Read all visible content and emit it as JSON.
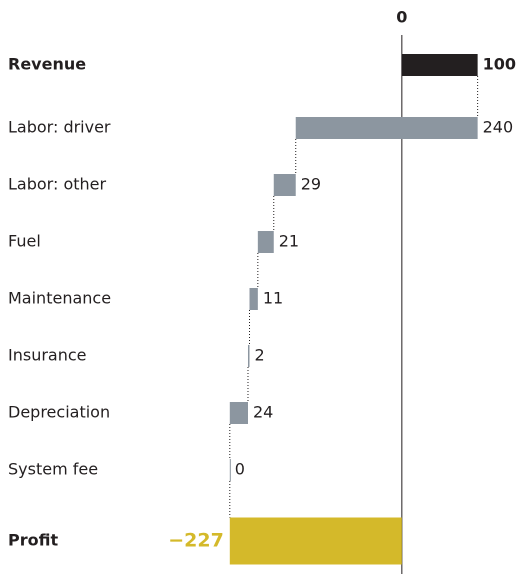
{
  "chart_data": {
    "type": "waterfall",
    "categories": [
      "Revenue",
      "Labor: driver",
      "Labor: other",
      "Fuel",
      "Maintenance",
      "Insurance",
      "Depreciation",
      "System fee",
      "Profit"
    ],
    "values": [
      100,
      -240,
      -29,
      -21,
      -11,
      -2,
      -24,
      0,
      -227
    ],
    "value_labels": [
      "100",
      "240",
      "29",
      "21",
      "11",
      "2",
      "24",
      "0",
      "−227"
    ],
    "measure": [
      "absolute",
      "relative",
      "relative",
      "relative",
      "relative",
      "relative",
      "relative",
      "relative",
      "total"
    ],
    "colors": {
      "absolute": "#231f20",
      "relative": "#8c96a0",
      "total": "#d4b92a"
    },
    "xlim": [
      -265,
      115
    ],
    "xticks": [
      0
    ]
  }
}
